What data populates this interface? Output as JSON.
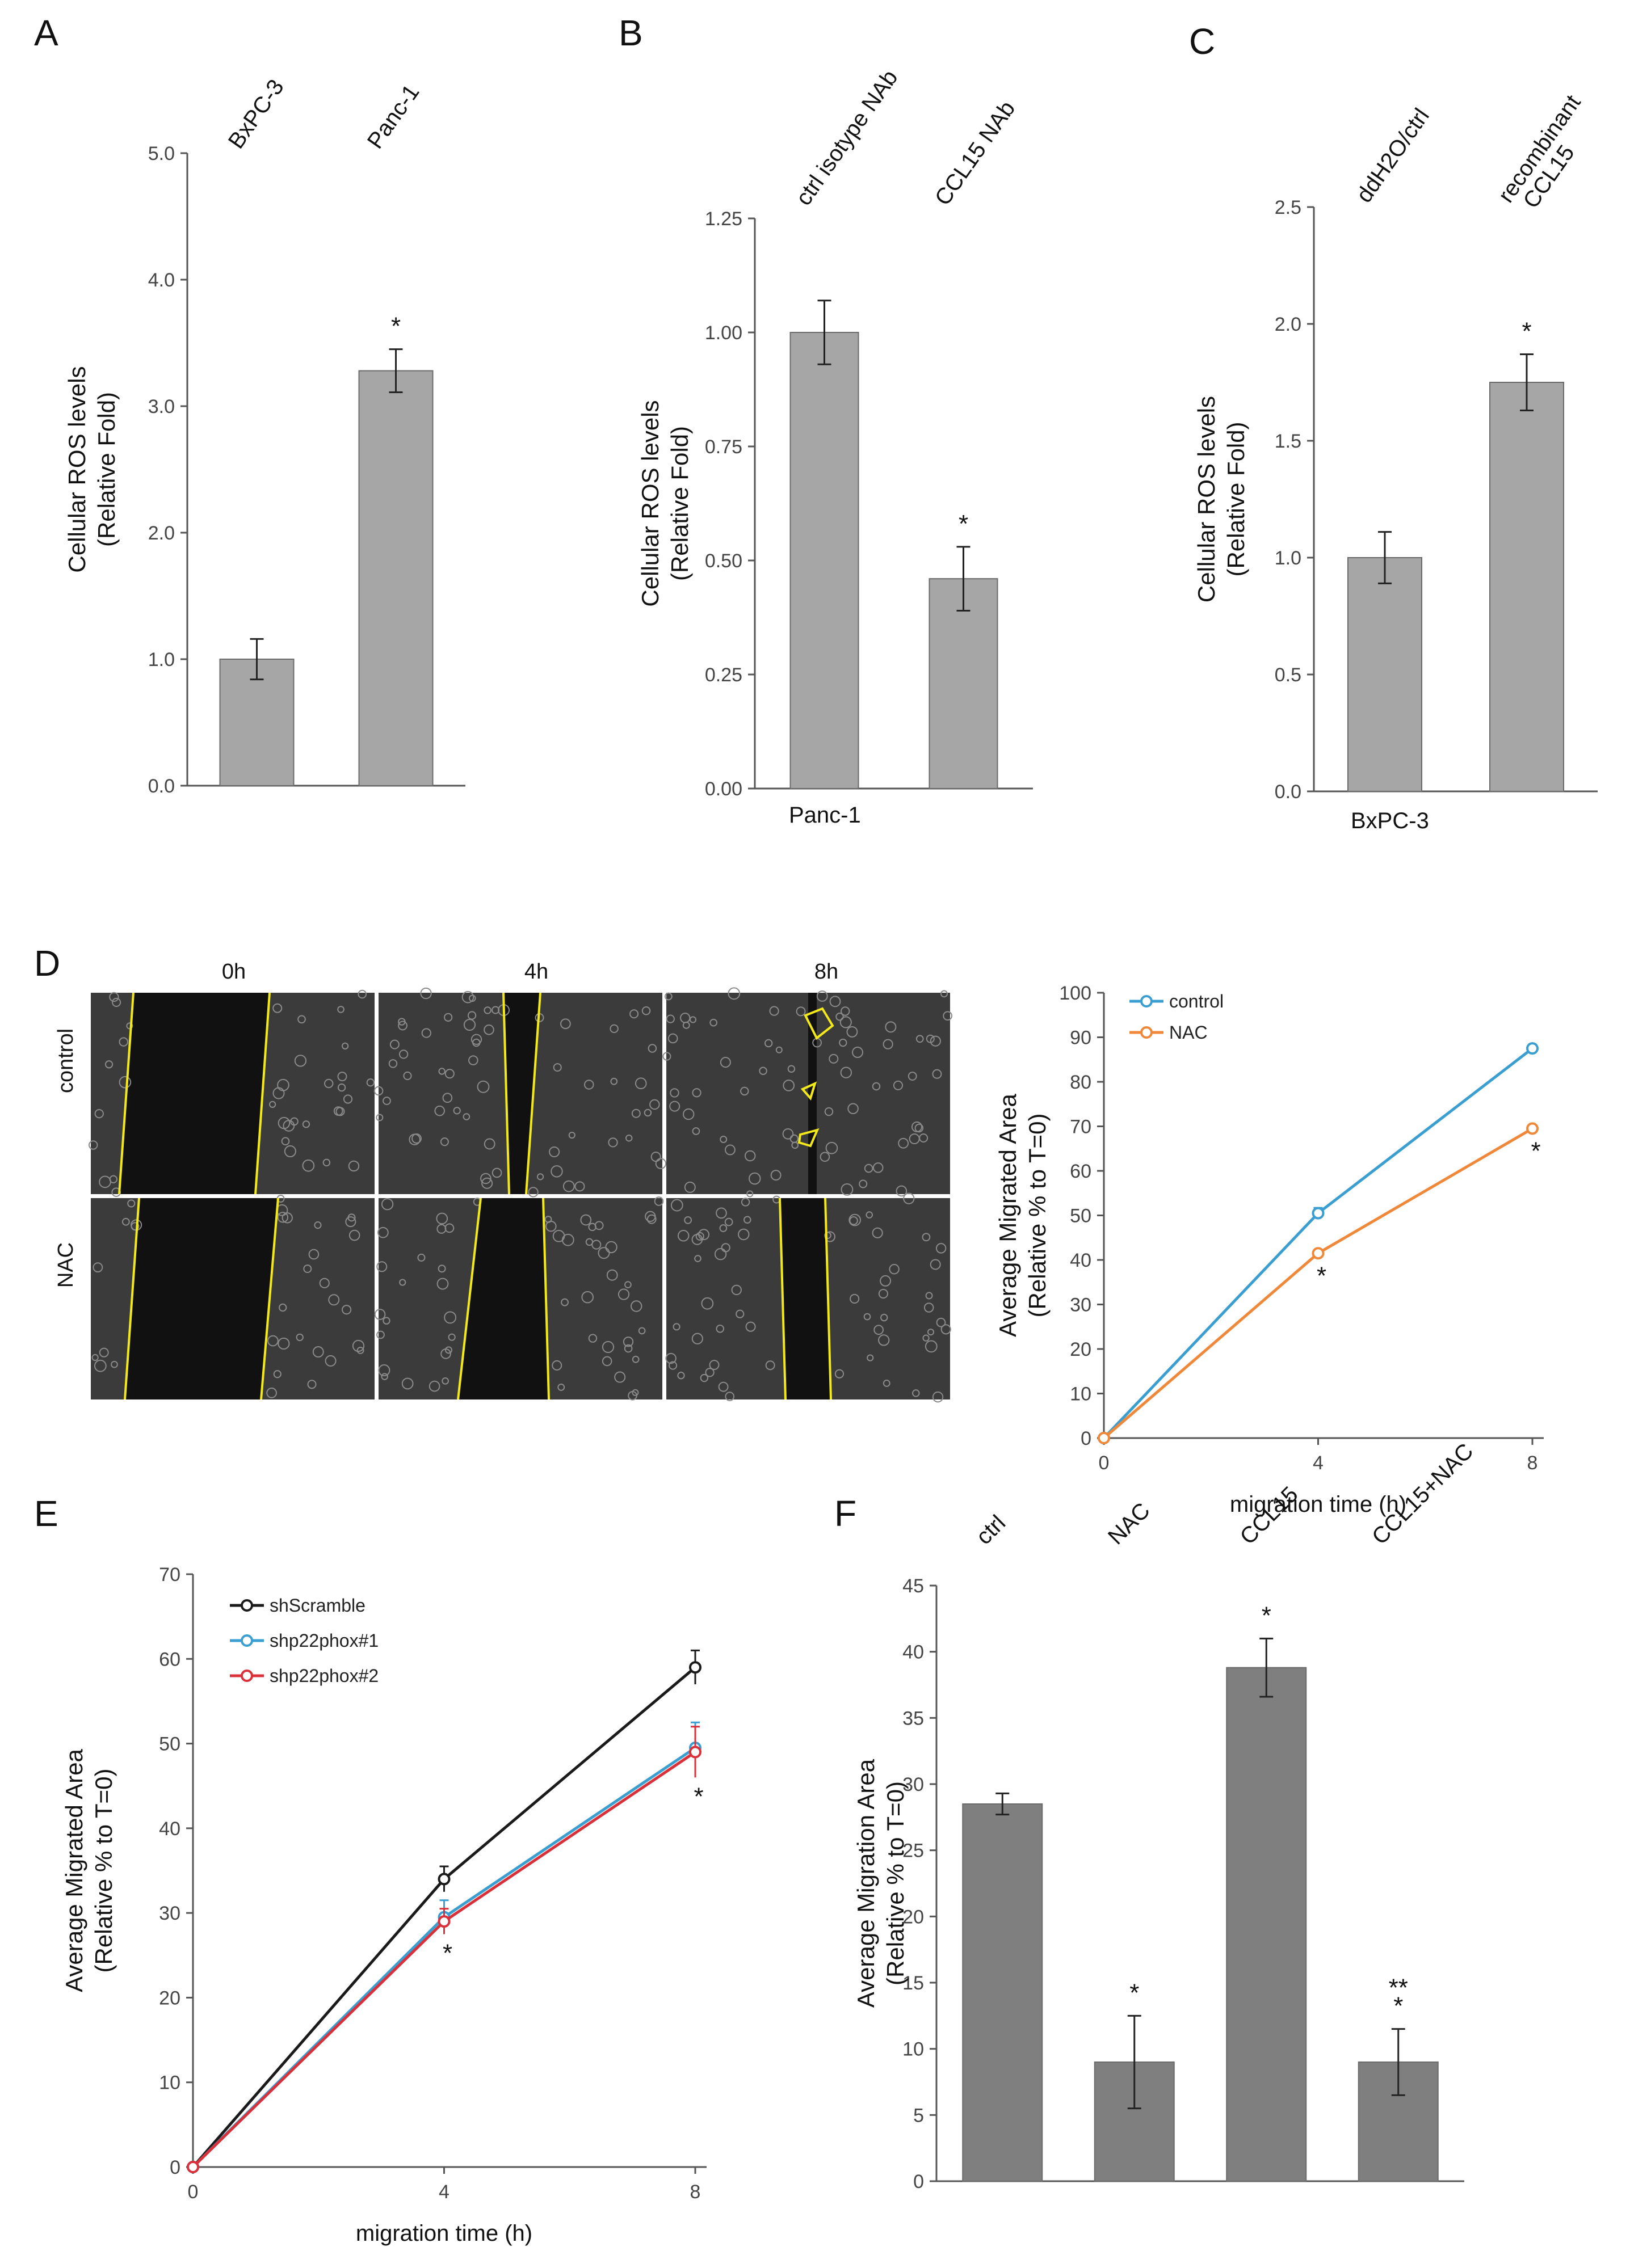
{
  "chart_data": [
    {
      "panel": "A",
      "type": "bar",
      "categories": [
        "BxPC-3",
        "Panc-1"
      ],
      "values": [
        1.0,
        3.28
      ],
      "errors": [
        0.16,
        0.17
      ],
      "significance": [
        "",
        "*"
      ],
      "ylabel": "Cellular ROS levels (Relative Fold)",
      "ylabel_lines": [
        "Cellular ROS levels",
        "(Relative Fold)"
      ],
      "yticks": [
        "0.0",
        "1.0",
        "2.0",
        "3.0",
        "4.0",
        "5.0"
      ],
      "ylim": [
        0,
        5
      ],
      "bar_color": "#a6a6a6"
    },
    {
      "panel": "B",
      "type": "bar",
      "categories": [
        "ctrl isotype NAb",
        "CCL15 NAb"
      ],
      "values": [
        1.0,
        0.46
      ],
      "errors": [
        0.07,
        0.07
      ],
      "significance": [
        "",
        "*"
      ],
      "ylabel": "Cellular ROS levels (Relative Fold)",
      "ylabel_lines": [
        "Cellular ROS levels",
        "(Relative Fold)"
      ],
      "yticks": [
        "0.00",
        "0.25",
        "0.50",
        "0.75",
        "1.00",
        "1.25"
      ],
      "ylim": [
        0,
        1.25
      ],
      "cell_line": "Panc-1",
      "bar_color": "#a6a6a6"
    },
    {
      "panel": "C",
      "type": "bar",
      "categories": [
        "ddH2O/ctrl",
        "recombinant CCL15"
      ],
      "category_lines": [
        [
          "ddH2O/ctrl"
        ],
        [
          "recombinant",
          "CCL15"
        ]
      ],
      "values": [
        1.0,
        1.75
      ],
      "errors": [
        0.11,
        0.12
      ],
      "significance": [
        "",
        "*"
      ],
      "ylabel": "Cellular ROS levels (Relative Fold)",
      "ylabel_lines": [
        "Cellular ROS levels",
        "(Relative Fold)"
      ],
      "yticks": [
        "0.0",
        "0.5",
        "1.0",
        "1.5",
        "2.0",
        "2.5"
      ],
      "ylim": [
        0,
        2.5
      ],
      "cell_line": "BxPC-3",
      "bar_color": "#a6a6a6"
    },
    {
      "panel": "D",
      "type": "line",
      "x": [
        0,
        4,
        8
      ],
      "series": [
        {
          "name": "control",
          "values": [
            0,
            50.5,
            87.5
          ],
          "errors": [
            0,
            1.2,
            0.6
          ],
          "color": "#3a9fd0"
        },
        {
          "name": "NAC",
          "values": [
            0,
            41.5,
            69.5
          ],
          "errors": [
            0,
            0.8,
            0.8
          ],
          "color": "#f0883a"
        }
      ],
      "significance": [
        "",
        "*",
        "*"
      ],
      "xlabel": "migration time (h)",
      "ylabel": "Average Migrated Area (Relative % to T=0)",
      "ylabel_lines": [
        "Average Migrated Area",
        "(Relative % to T=0)"
      ],
      "xticks": [
        "0",
        "4",
        "8"
      ],
      "yticks": [
        "0",
        "10",
        "20",
        "30",
        "40",
        "50",
        "60",
        "70",
        "80",
        "90",
        "100"
      ],
      "ylim": [
        0,
        100
      ],
      "legend_position": "top-left"
    },
    {
      "panel": "E",
      "type": "line",
      "x": [
        0,
        4,
        8
      ],
      "series": [
        {
          "name": "shScramble",
          "values": [
            0,
            34,
            59
          ],
          "errors": [
            0,
            1.5,
            2
          ],
          "color": "#1a1a1a"
        },
        {
          "name": "shp22phox#1",
          "values": [
            0,
            29.5,
            49.5
          ],
          "errors": [
            0,
            2,
            3
          ],
          "color": "#3a9fd0"
        },
        {
          "name": "shp22phox#2",
          "values": [
            0,
            29,
            49
          ],
          "errors": [
            0,
            1.5,
            3
          ],
          "color": "#d9303a"
        }
      ],
      "significance": [
        "",
        "*",
        "*"
      ],
      "xlabel": "migration time (h)",
      "ylabel": "Average Migrated Area (Relative % to T=0)",
      "ylabel_lines": [
        "Average Migrated Area",
        "(Relative % to T=0)"
      ],
      "xticks": [
        "0",
        "4",
        "8"
      ],
      "yticks": [
        "0",
        "10",
        "20",
        "30",
        "40",
        "50",
        "60",
        "70"
      ],
      "ylim": [
        0,
        70
      ],
      "legend_position": "top-left"
    },
    {
      "panel": "F",
      "type": "bar",
      "categories": [
        "ctrl",
        "NAC",
        "CCL15",
        "CCL15+NAC"
      ],
      "values": [
        28.5,
        9,
        38.8,
        9
      ],
      "errors": [
        0.8,
        3.5,
        2.2,
        2.5
      ],
      "significance": [
        "",
        "*",
        "*",
        "*"
      ],
      "significance2": [
        "",
        "",
        "",
        "**"
      ],
      "ylabel": "Average Migration Area (Relative % to T=0)",
      "ylabel_lines": [
        "Average Migration Area",
        "(Relative % to T=0)"
      ],
      "yticks": [
        "0",
        "5",
        "10",
        "15",
        "20",
        "25",
        "30",
        "35",
        "40",
        "45"
      ],
      "ylim": [
        0,
        45
      ],
      "bar_color": "#7f7f7f"
    }
  ],
  "panel_letters": [
    "A",
    "B",
    "C",
    "D",
    "E",
    "F"
  ],
  "micrographs": {
    "time_labels": [
      "0h",
      "4h",
      "8h"
    ],
    "row_labels": [
      "control",
      "NAC"
    ],
    "outline_color": "#f2e81a"
  }
}
